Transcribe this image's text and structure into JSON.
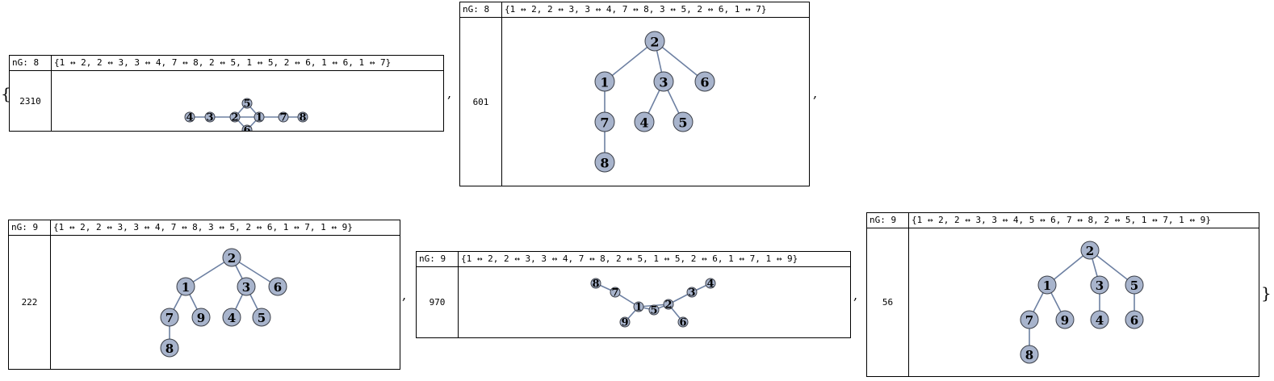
{
  "brace_open": "{",
  "brace_close": "}",
  "separator": ",",
  "graphs": [
    {
      "ng_label": "nG: 8",
      "edges_text": "{1 ↔ 2, 2 ↔ 3, 3 ↔ 4, 7 ↔ 8, 2 ↔ 5, 1 ↔ 5, 2 ↔ 6, 1 ↔ 6, 1 ↔ 7}",
      "count": "2310",
      "node_labels": [
        "1",
        "2",
        "3",
        "4",
        "5",
        "6",
        "7",
        "8"
      ],
      "edge_list": [
        [
          1,
          2
        ],
        [
          2,
          3
        ],
        [
          3,
          4
        ],
        [
          7,
          8
        ],
        [
          2,
          5
        ],
        [
          1,
          5
        ],
        [
          2,
          6
        ],
        [
          1,
          6
        ],
        [
          1,
          7
        ]
      ]
    },
    {
      "ng_label": "nG: 8",
      "edges_text": "{1 ↔ 2, 2 ↔ 3, 3 ↔ 4, 7 ↔ 8, 3 ↔ 5, 2 ↔ 6, 1 ↔ 7}",
      "count": "601",
      "node_labels": [
        "1",
        "2",
        "3",
        "4",
        "5",
        "6",
        "7",
        "8"
      ],
      "edge_list": [
        [
          1,
          2
        ],
        [
          2,
          3
        ],
        [
          3,
          4
        ],
        [
          7,
          8
        ],
        [
          3,
          5
        ],
        [
          2,
          6
        ],
        [
          1,
          7
        ]
      ]
    },
    {
      "ng_label": "nG: 9",
      "edges_text": "{1 ↔ 2, 2 ↔ 3, 3 ↔ 4, 7 ↔ 8, 3 ↔ 5, 2 ↔ 6, 1 ↔ 7, 1 ↔ 9}",
      "count": "222",
      "node_labels": [
        "1",
        "2",
        "3",
        "4",
        "5",
        "6",
        "7",
        "8",
        "9"
      ],
      "edge_list": [
        [
          1,
          2
        ],
        [
          2,
          3
        ],
        [
          3,
          4
        ],
        [
          7,
          8
        ],
        [
          3,
          5
        ],
        [
          2,
          6
        ],
        [
          1,
          7
        ],
        [
          1,
          9
        ]
      ]
    },
    {
      "ng_label": "nG: 9",
      "edges_text": "{1 ↔ 2, 2 ↔ 3, 3 ↔ 4, 7 ↔ 8, 2 ↔ 5, 1 ↔ 5, 2 ↔ 6, 1 ↔ 7, 1 ↔ 9}",
      "count": "970",
      "node_labels": [
        "1",
        "2",
        "3",
        "4",
        "5",
        "6",
        "7",
        "8",
        "9"
      ],
      "edge_list": [
        [
          1,
          2
        ],
        [
          2,
          3
        ],
        [
          3,
          4
        ],
        [
          7,
          8
        ],
        [
          2,
          5
        ],
        [
          1,
          5
        ],
        [
          2,
          6
        ],
        [
          1,
          7
        ],
        [
          1,
          9
        ]
      ]
    },
    {
      "ng_label": "nG: 9",
      "edges_text": "{1 ↔ 2, 2 ↔ 3, 3 ↔ 4, 5 ↔ 6, 7 ↔ 8, 2 ↔ 5, 1 ↔ 7, 1 ↔ 9}",
      "count": "56",
      "node_labels": [
        "1",
        "2",
        "3",
        "4",
        "5",
        "6",
        "7",
        "8",
        "9"
      ],
      "edge_list": [
        [
          1,
          2
        ],
        [
          2,
          3
        ],
        [
          3,
          4
        ],
        [
          5,
          6
        ],
        [
          7,
          8
        ],
        [
          2,
          5
        ],
        [
          1,
          7
        ],
        [
          1,
          9
        ]
      ]
    }
  ]
}
